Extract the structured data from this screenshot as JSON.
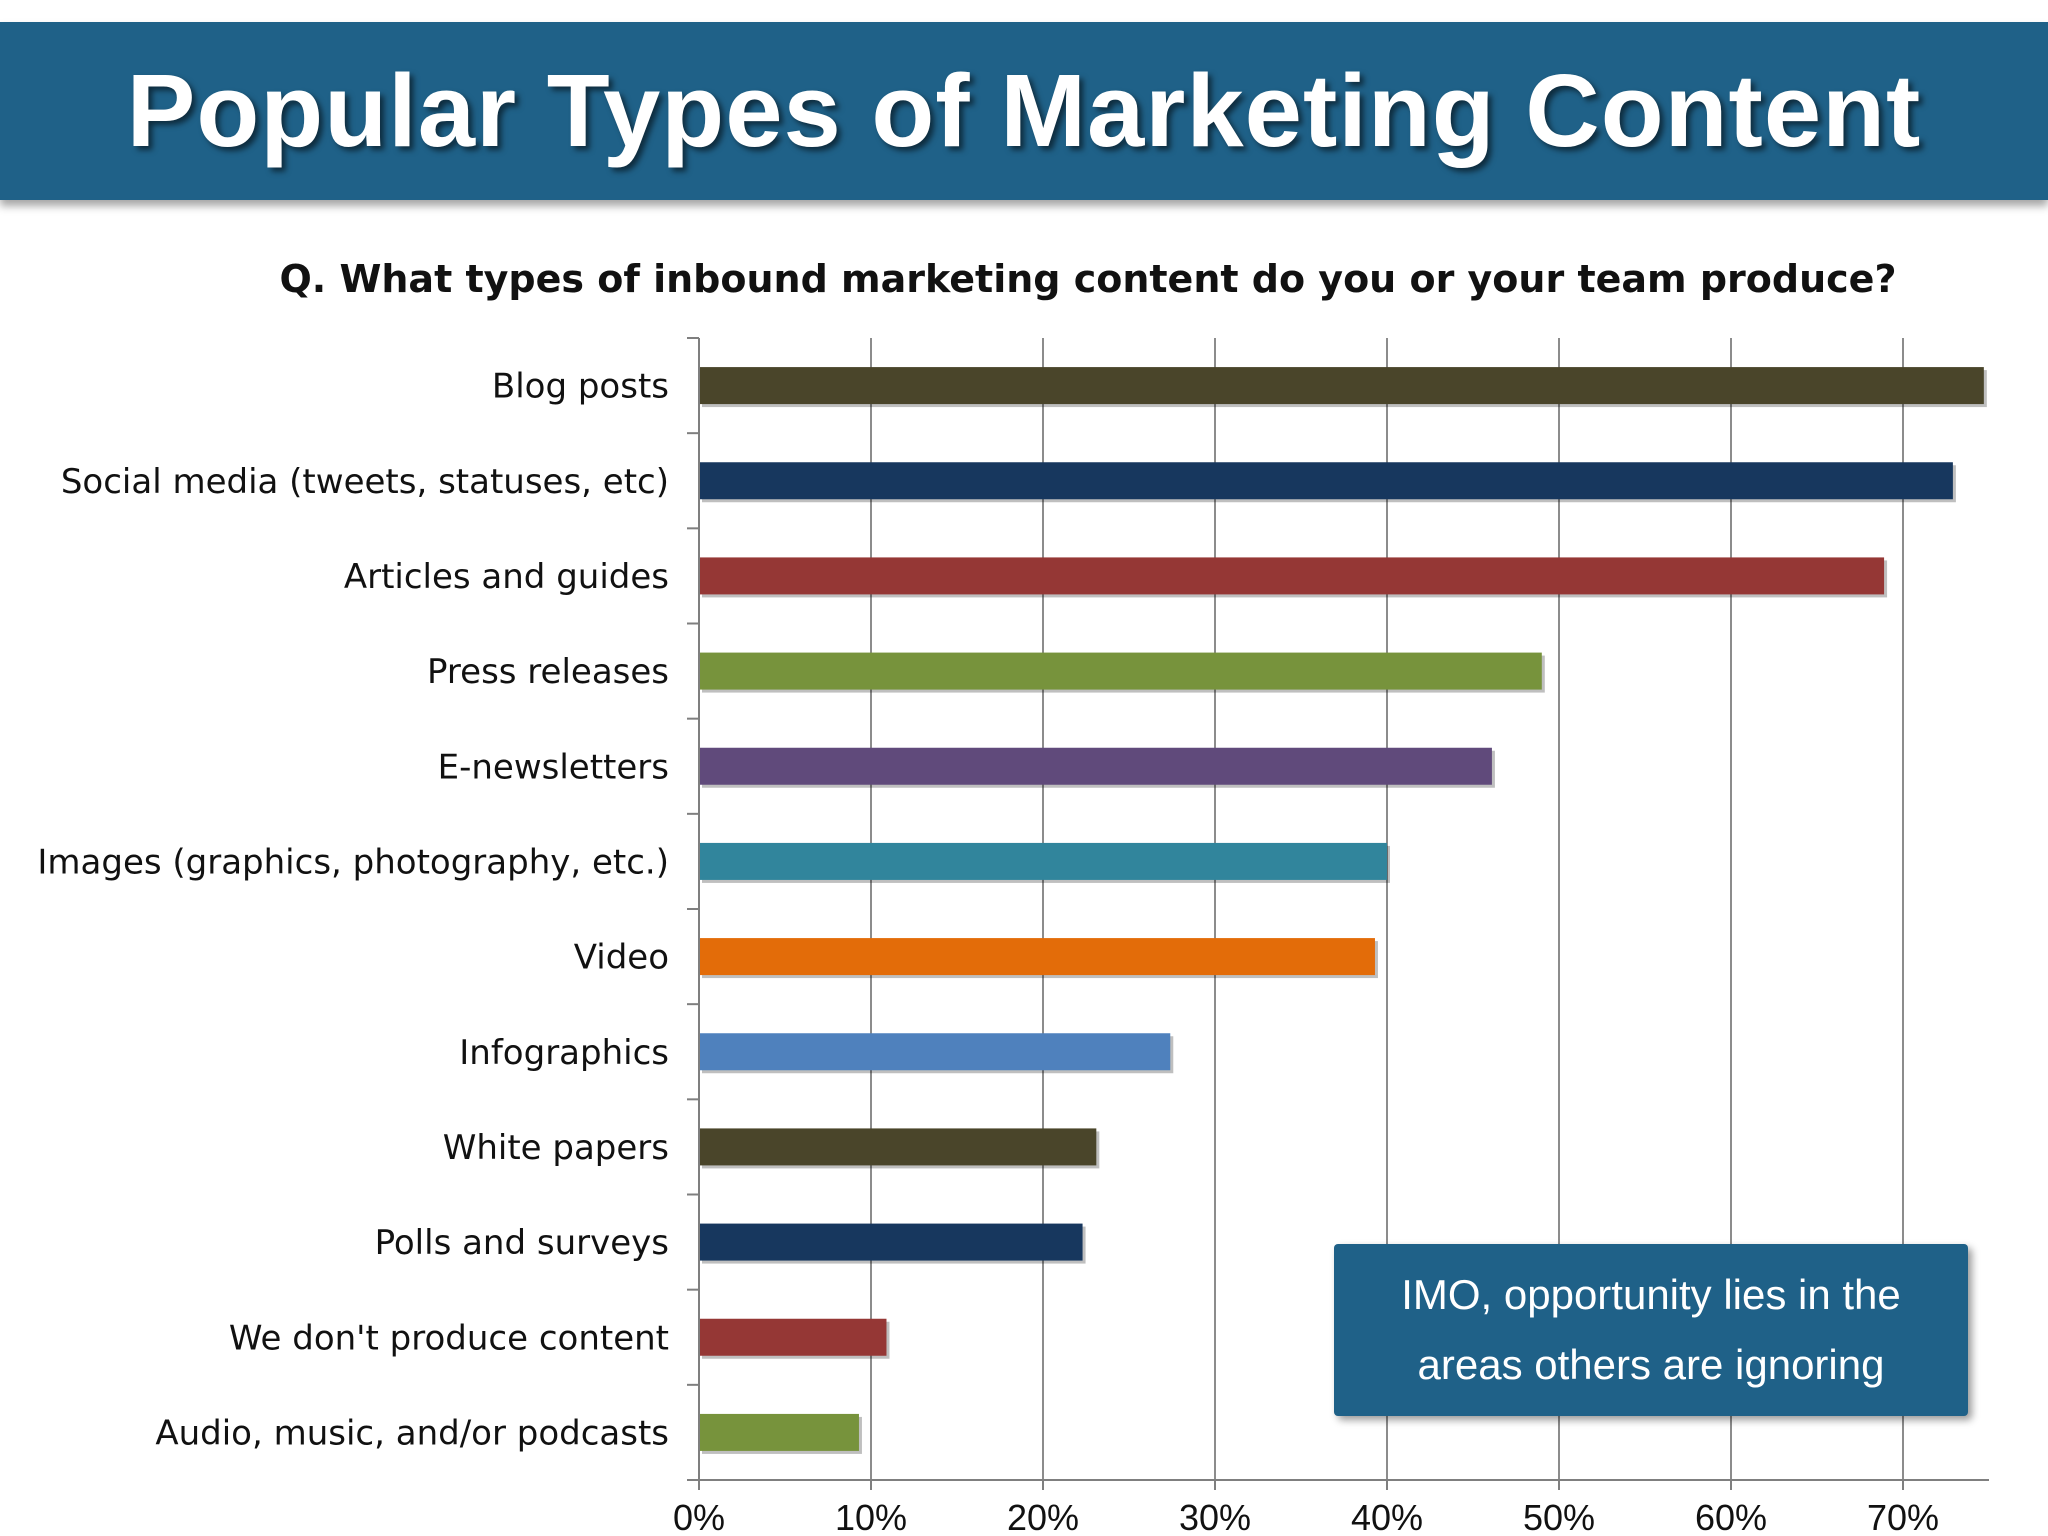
{
  "header": {
    "title": "Popular Types of Marketing Content"
  },
  "callout": {
    "line1": "IMO, opportunity lies in the",
    "line2": "areas others are ignoring"
  },
  "chart_data": {
    "type": "bar",
    "orientation": "horizontal",
    "title": "Q. What types of inbound marketing content do you or your team produce?",
    "xlabel": "",
    "ylabel": "",
    "xlim": [
      0,
      75
    ],
    "x_ticks": [
      0,
      10,
      20,
      30,
      40,
      50,
      60,
      70
    ],
    "x_tick_labels": [
      "0%",
      "10%",
      "20%",
      "30%",
      "40%",
      "50%",
      "60%",
      "70%"
    ],
    "grid": true,
    "categories": [
      "Blog posts",
      "Social media (tweets, statuses, etc)",
      "Articles and guides",
      "Press releases",
      "E-newsletters",
      "Images (graphics, photography, etc.)",
      "Video",
      "Infographics",
      "White papers",
      "Polls and surveys",
      "We don't produce content",
      "Audio, music, and/or podcasts"
    ],
    "values": [
      74.7,
      72.9,
      68.9,
      49.0,
      46.1,
      40.0,
      39.3,
      27.4,
      23.1,
      22.3,
      10.9,
      9.3
    ],
    "colors": [
      "#4a452a",
      "#17375e",
      "#953735",
      "#77933c",
      "#604a7b",
      "#31859c",
      "#e36c09",
      "#4f81bd",
      "#4a452a",
      "#17375e",
      "#953735",
      "#77933c"
    ]
  }
}
